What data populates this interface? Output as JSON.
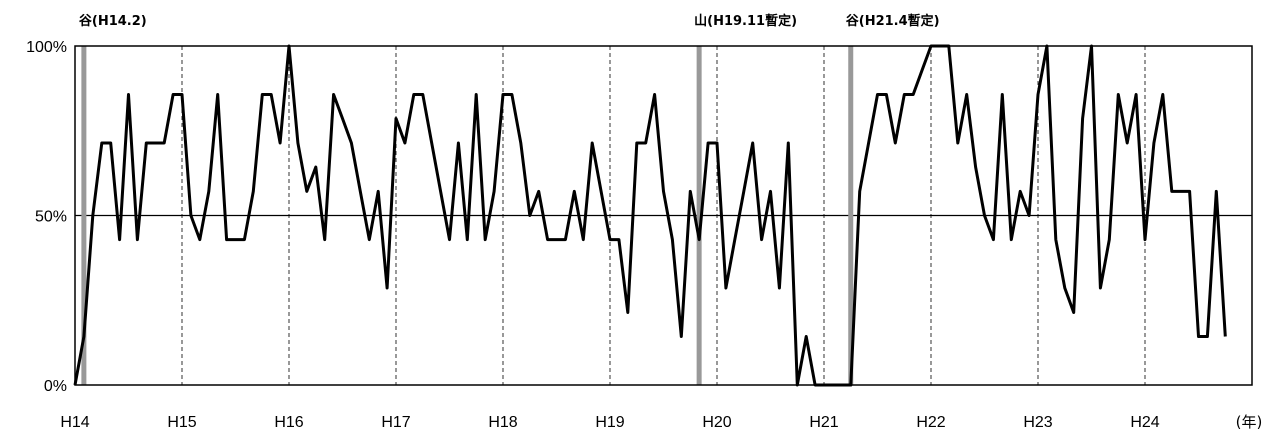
{
  "chart_data": {
    "type": "line",
    "xlabel": "",
    "ylabel": "",
    "x_unit": "(年)",
    "x_tick_labels": [
      "H14",
      "H15",
      "H16",
      "H17",
      "H18",
      "H19",
      "H20",
      "H21",
      "H22",
      "H23",
      "H24"
    ],
    "y_tick_labels": [
      "0%",
      "50%",
      "100%"
    ],
    "ylim": [
      0,
      100
    ],
    "grid": {
      "vertical": "dashed",
      "horizontal_50": "solid"
    },
    "legend": "none",
    "x_start_year": 14,
    "x_end_year": 25,
    "series": [
      {
        "values": [
          0,
          14.3,
          50,
          71.4,
          71.4,
          42.9,
          85.7,
          42.9,
          71.4,
          71.4,
          71.4,
          85.7,
          85.7,
          50,
          42.9,
          57.1,
          85.7,
          42.9,
          42.9,
          42.9,
          57.1,
          85.7,
          85.7,
          71.4,
          100,
          71.4,
          57.1,
          64.3,
          42.9,
          85.7,
          78.6,
          71.4,
          57.1,
          42.9,
          57.1,
          28.6,
          78.6,
          71.4,
          85.7,
          85.7,
          71.4,
          57.1,
          42.9,
          71.4,
          42.9,
          85.7,
          42.9,
          57.1,
          85.7,
          85.7,
          71.4,
          50,
          57.1,
          42.9,
          42.9,
          42.9,
          57.1,
          42.9,
          71.4,
          57.1,
          42.9,
          42.9,
          21.4,
          71.4,
          71.4,
          85.7,
          57.1,
          42.9,
          14.3,
          57.1,
          42.9,
          71.4,
          71.4,
          28.6,
          42.9,
          57.1,
          71.4,
          42.9,
          57.1,
          28.6,
          71.4,
          0,
          14.3,
          0,
          0,
          0,
          0,
          0,
          57.1,
          71.4,
          85.7,
          85.7,
          71.4,
          85.7,
          85.7,
          92.9,
          100,
          100,
          100,
          71.4,
          85.7,
          64.3,
          50,
          42.9,
          85.7,
          42.9,
          57.1,
          50,
          85.7,
          100,
          42.9,
          28.6,
          21.4,
          78.6,
          100,
          28.6,
          42.9,
          85.7,
          71.4,
          85.7,
          42.9,
          71.4,
          85.7,
          57.1,
          57.1,
          57.1,
          14.3,
          14.3,
          57.1,
          14.3
        ],
        "color": "#000000"
      }
    ],
    "annotations": [
      {
        "label": "谷(H14.2)",
        "x_year": 14.083,
        "color": "#999999"
      },
      {
        "label": "山(H19.11暫定)",
        "x_year": 19.833,
        "color": "#999999"
      },
      {
        "label": "谷(H21.4暫定)",
        "x_year": 21.25,
        "color": "#999999"
      }
    ]
  }
}
